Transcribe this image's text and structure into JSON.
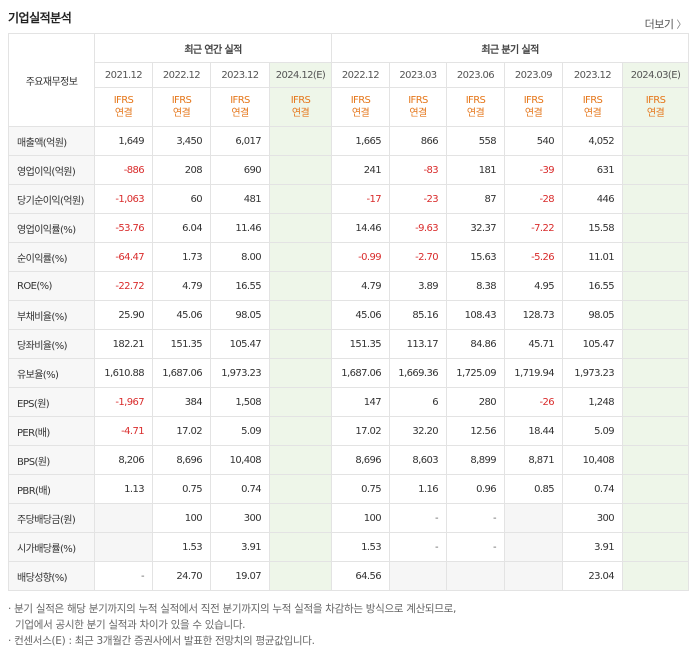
{
  "header": {
    "title": "기업실적분석",
    "more_label": "더보기",
    "more_arrow": "〉"
  },
  "table": {
    "row_header_label": "주요재무정보",
    "group_annual": "최근 연간 실적",
    "group_quarterly": "최근 분기 실적",
    "periods": [
      "2021.12",
      "2022.12",
      "2023.12",
      "2024.12(E)",
      "2022.12",
      "2023.03",
      "2023.06",
      "2023.09",
      "2023.12",
      "2024.03(E)"
    ],
    "ifrs_top": "IFRS",
    "ifrs_bottom": "연결",
    "rows": [
      {
        "label": "매출액(억원)",
        "values": [
          "1,649",
          "3,450",
          "6,017",
          "",
          "1,665",
          "866",
          "558",
          "540",
          "4,052",
          ""
        ]
      },
      {
        "label": "영업이익(억원)",
        "values": [
          "-886",
          "208",
          "690",
          "",
          "241",
          "-83",
          "181",
          "-39",
          "631",
          ""
        ]
      },
      {
        "label": "당기순이익(억원)",
        "values": [
          "-1,063",
          "60",
          "481",
          "",
          "-17",
          "-23",
          "87",
          "-28",
          "446",
          ""
        ]
      },
      {
        "label": "영업이익률(%)",
        "values": [
          "-53.76",
          "6.04",
          "11.46",
          "",
          "14.46",
          "-9.63",
          "32.37",
          "-7.22",
          "15.58",
          ""
        ]
      },
      {
        "label": "순이익률(%)",
        "values": [
          "-64.47",
          "1.73",
          "8.00",
          "",
          "-0.99",
          "-2.70",
          "15.63",
          "-5.26",
          "11.01",
          ""
        ]
      },
      {
        "label": "ROE(%)",
        "values": [
          "-22.72",
          "4.79",
          "16.55",
          "",
          "4.79",
          "3.89",
          "8.38",
          "4.95",
          "16.55",
          ""
        ]
      },
      {
        "label": "부채비율(%)",
        "values": [
          "25.90",
          "45.06",
          "98.05",
          "",
          "45.06",
          "85.16",
          "108.43",
          "128.73",
          "98.05",
          ""
        ]
      },
      {
        "label": "당좌비율(%)",
        "values": [
          "182.21",
          "151.35",
          "105.47",
          "",
          "151.35",
          "113.17",
          "84.86",
          "45.71",
          "105.47",
          ""
        ]
      },
      {
        "label": "유보율(%)",
        "values": [
          "1,610.88",
          "1,687.06",
          "1,973.23",
          "",
          "1,687.06",
          "1,669.36",
          "1,725.09",
          "1,719.94",
          "1,973.23",
          ""
        ]
      },
      {
        "label": "EPS(원)",
        "values": [
          "-1,967",
          "384",
          "1,508",
          "",
          "147",
          "6",
          "280",
          "-26",
          "1,248",
          ""
        ]
      },
      {
        "label": "PER(배)",
        "values": [
          "-4.71",
          "17.02",
          "5.09",
          "",
          "17.02",
          "32.20",
          "12.56",
          "18.44",
          "5.09",
          ""
        ]
      },
      {
        "label": "BPS(원)",
        "values": [
          "8,206",
          "8,696",
          "10,408",
          "",
          "8,696",
          "8,603",
          "8,899",
          "8,871",
          "10,408",
          ""
        ]
      },
      {
        "label": "PBR(배)",
        "values": [
          "1.13",
          "0.75",
          "0.74",
          "",
          "0.75",
          "1.16",
          "0.96",
          "0.85",
          "0.74",
          ""
        ]
      },
      {
        "label": "주당배당금(원)",
        "values": [
          "",
          "100",
          "300",
          "",
          "100",
          "-",
          "-",
          "",
          "300",
          ""
        ]
      },
      {
        "label": "시가배당률(%)",
        "values": [
          "",
          "1.53",
          "3.91",
          "",
          "1.53",
          "-",
          "-",
          "",
          "3.91",
          ""
        ]
      },
      {
        "label": "배당성향(%)",
        "values": [
          "-",
          "24.70",
          "19.07",
          "",
          "64.56",
          "",
          "",
          "",
          "23.04",
          ""
        ]
      }
    ]
  },
  "notes": {
    "line1": "· 분기 실적은 해당 분기까지의 누적 실적에서 직전 분기까지의 누적 실적을 차감하는 방식으로 계산되므로,",
    "line2": "기업에서 공시한 분기 실적과 차이가 있을 수 있습니다.",
    "line3": "· 컨센서스(E) : 최근 3개월간 증권사에서 발표한 전망치의 평균값입니다."
  },
  "colors": {
    "negative": "#d92c2c",
    "ifrs": "#e5771b",
    "estimate_bg": "#eef6e9"
  }
}
